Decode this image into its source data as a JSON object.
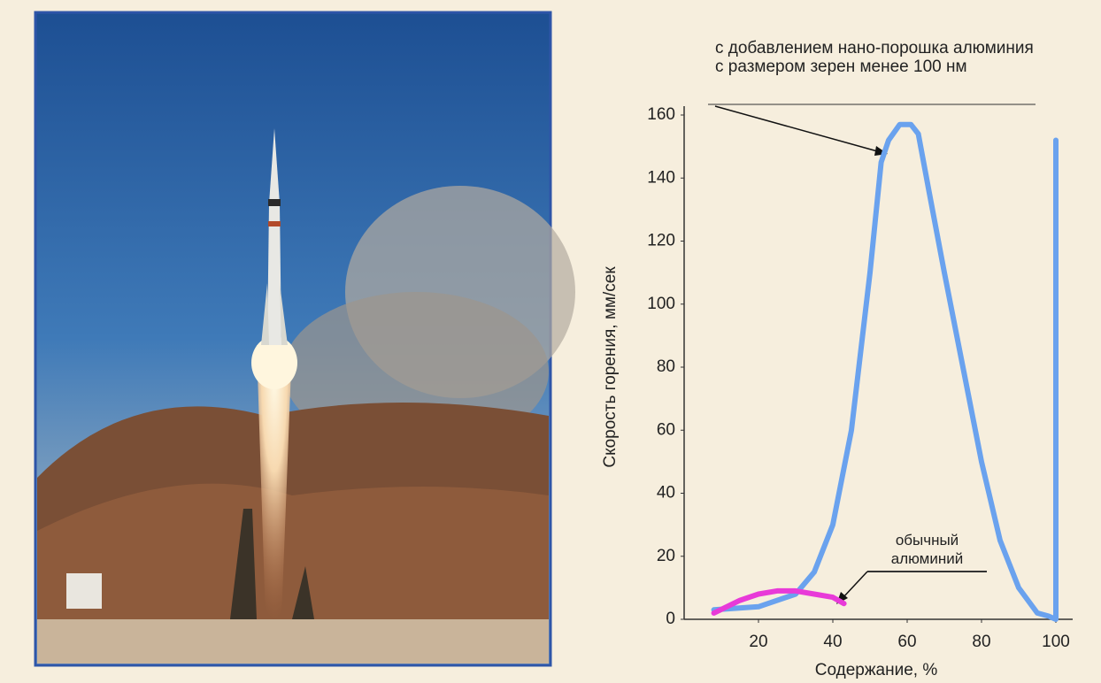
{
  "chart_data": {
    "type": "line",
    "xlabel": "Содержание, %",
    "ylabel": "Скорость горения, мм/сек",
    "xlim": [
      0,
      105
    ],
    "ylim": [
      0,
      160
    ],
    "xticks": [
      20,
      40,
      60,
      80,
      100
    ],
    "yticks": [
      0,
      20,
      40,
      60,
      80,
      100,
      120,
      140,
      160
    ],
    "series": [
      {
        "name": "с добавлением нано-порошка алюминия с размером зерен менее 100 нм",
        "color": "#6aa2ee",
        "x": [
          8,
          20,
          30,
          35,
          40,
          45,
          50,
          53,
          55,
          58,
          61,
          63,
          66,
          70,
          75,
          80,
          85,
          90,
          95,
          98,
          100,
          100
        ],
        "values": [
          3,
          4,
          8,
          15,
          30,
          60,
          110,
          145,
          152,
          157,
          157,
          154,
          135,
          110,
          80,
          50,
          25,
          10,
          2,
          1,
          0,
          152
        ]
      },
      {
        "name": "обычный алюминий",
        "color": "#e83ad8",
        "x": [
          8,
          15,
          20,
          25,
          30,
          35,
          40,
          43
        ],
        "values": [
          2,
          6,
          8,
          9,
          9,
          8,
          7,
          5
        ]
      }
    ]
  }
}
